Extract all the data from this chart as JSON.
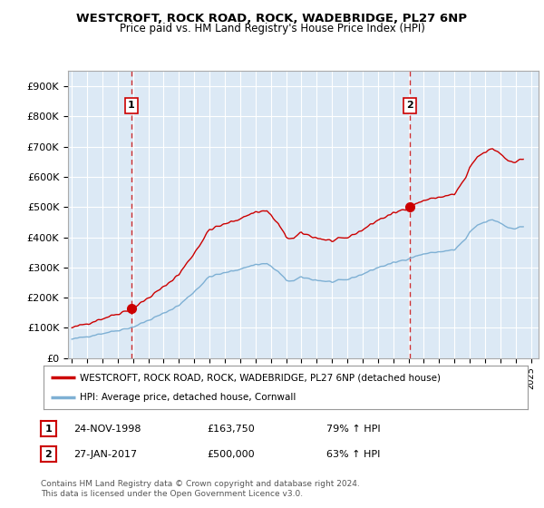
{
  "title": "WESTCROFT, ROCK ROAD, ROCK, WADEBRIDGE, PL27 6NP",
  "subtitle": "Price paid vs. HM Land Registry's House Price Index (HPI)",
  "ylabel_ticks": [
    "£0",
    "£100K",
    "£200K",
    "£300K",
    "£400K",
    "£500K",
    "£600K",
    "£700K",
    "£800K",
    "£900K"
  ],
  "ytick_values": [
    0,
    100000,
    200000,
    300000,
    400000,
    500000,
    600000,
    700000,
    800000,
    900000
  ],
  "ylim": [
    0,
    950000
  ],
  "legend_line1": "WESTCROFT, ROCK ROAD, ROCK, WADEBRIDGE, PL27 6NP (detached house)",
  "legend_line2": "HPI: Average price, detached house, Cornwall",
  "sale1_date": "24-NOV-1998",
  "sale1_price": "£163,750",
  "sale1_hpi": "79% ↑ HPI",
  "sale2_date": "27-JAN-2017",
  "sale2_price": "£500,000",
  "sale2_hpi": "63% ↑ HPI",
  "footer": "Contains HM Land Registry data © Crown copyright and database right 2024.\nThis data is licensed under the Open Government Licence v3.0.",
  "property_color": "#cc0000",
  "hpi_color": "#7eb0d4",
  "sale_marker_color": "#cc0000",
  "plot_bg_color": "#dce9f5",
  "background_color": "#ffffff",
  "grid_color": "#ffffff",
  "xlim": [
    1994.75,
    2025.5
  ],
  "xtick_years": [
    1995,
    1996,
    1997,
    1998,
    1999,
    2000,
    2001,
    2002,
    2003,
    2004,
    2005,
    2006,
    2007,
    2008,
    2009,
    2010,
    2011,
    2012,
    2013,
    2014,
    2015,
    2016,
    2017,
    2018,
    2019,
    2020,
    2021,
    2022,
    2023,
    2024,
    2025
  ],
  "sale1_x": 1998.9,
  "sale1_y": 163750,
  "sale2_x": 2017.08,
  "sale2_y": 500000
}
